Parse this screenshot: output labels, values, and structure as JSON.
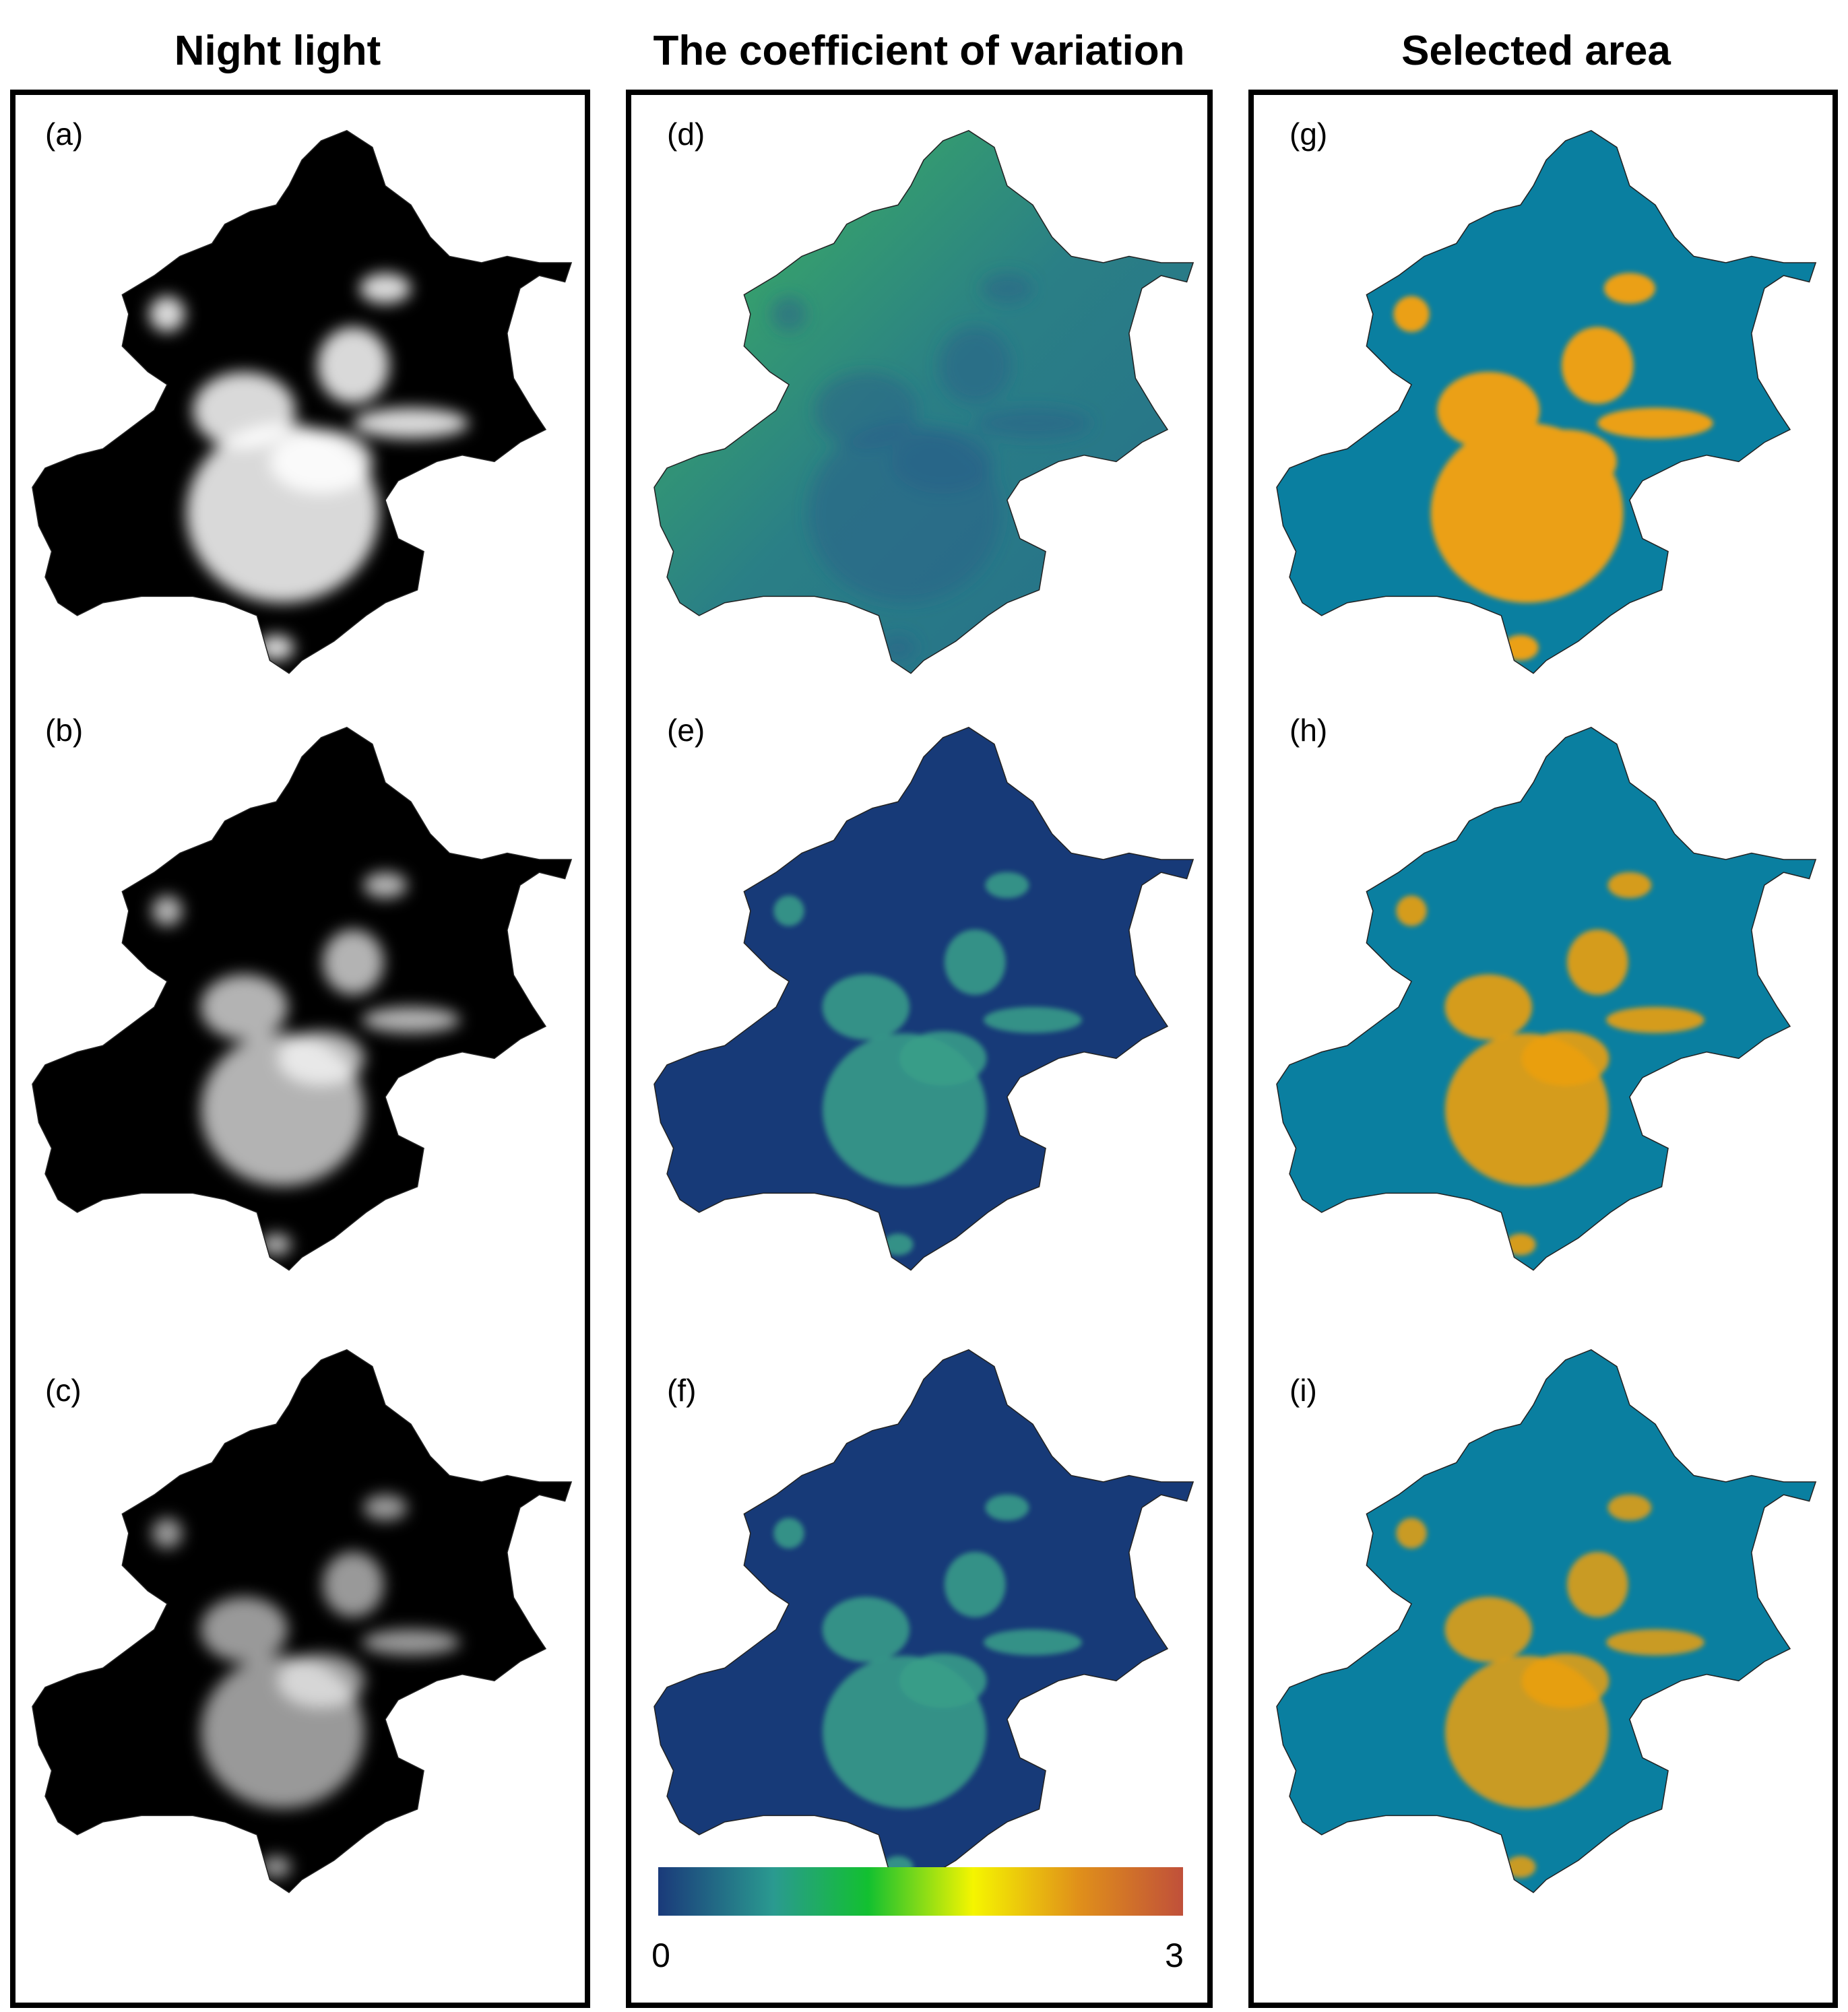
{
  "columns": [
    {
      "title": "Night light",
      "panels": [
        {
          "label": "(a)"
        },
        {
          "label": "(b)"
        },
        {
          "label": "(c)"
        }
      ]
    },
    {
      "title": "The coefficient of variation",
      "panels": [
        {
          "label": "(d)"
        },
        {
          "label": "(e)"
        },
        {
          "label": "(f)"
        }
      ]
    },
    {
      "title": "Selected area",
      "panels": [
        {
          "label": "(g)"
        },
        {
          "label": "(h)"
        },
        {
          "label": "(i)"
        }
      ]
    }
  ],
  "colorbar": {
    "ticks": [
      0,
      3
    ]
  }
}
